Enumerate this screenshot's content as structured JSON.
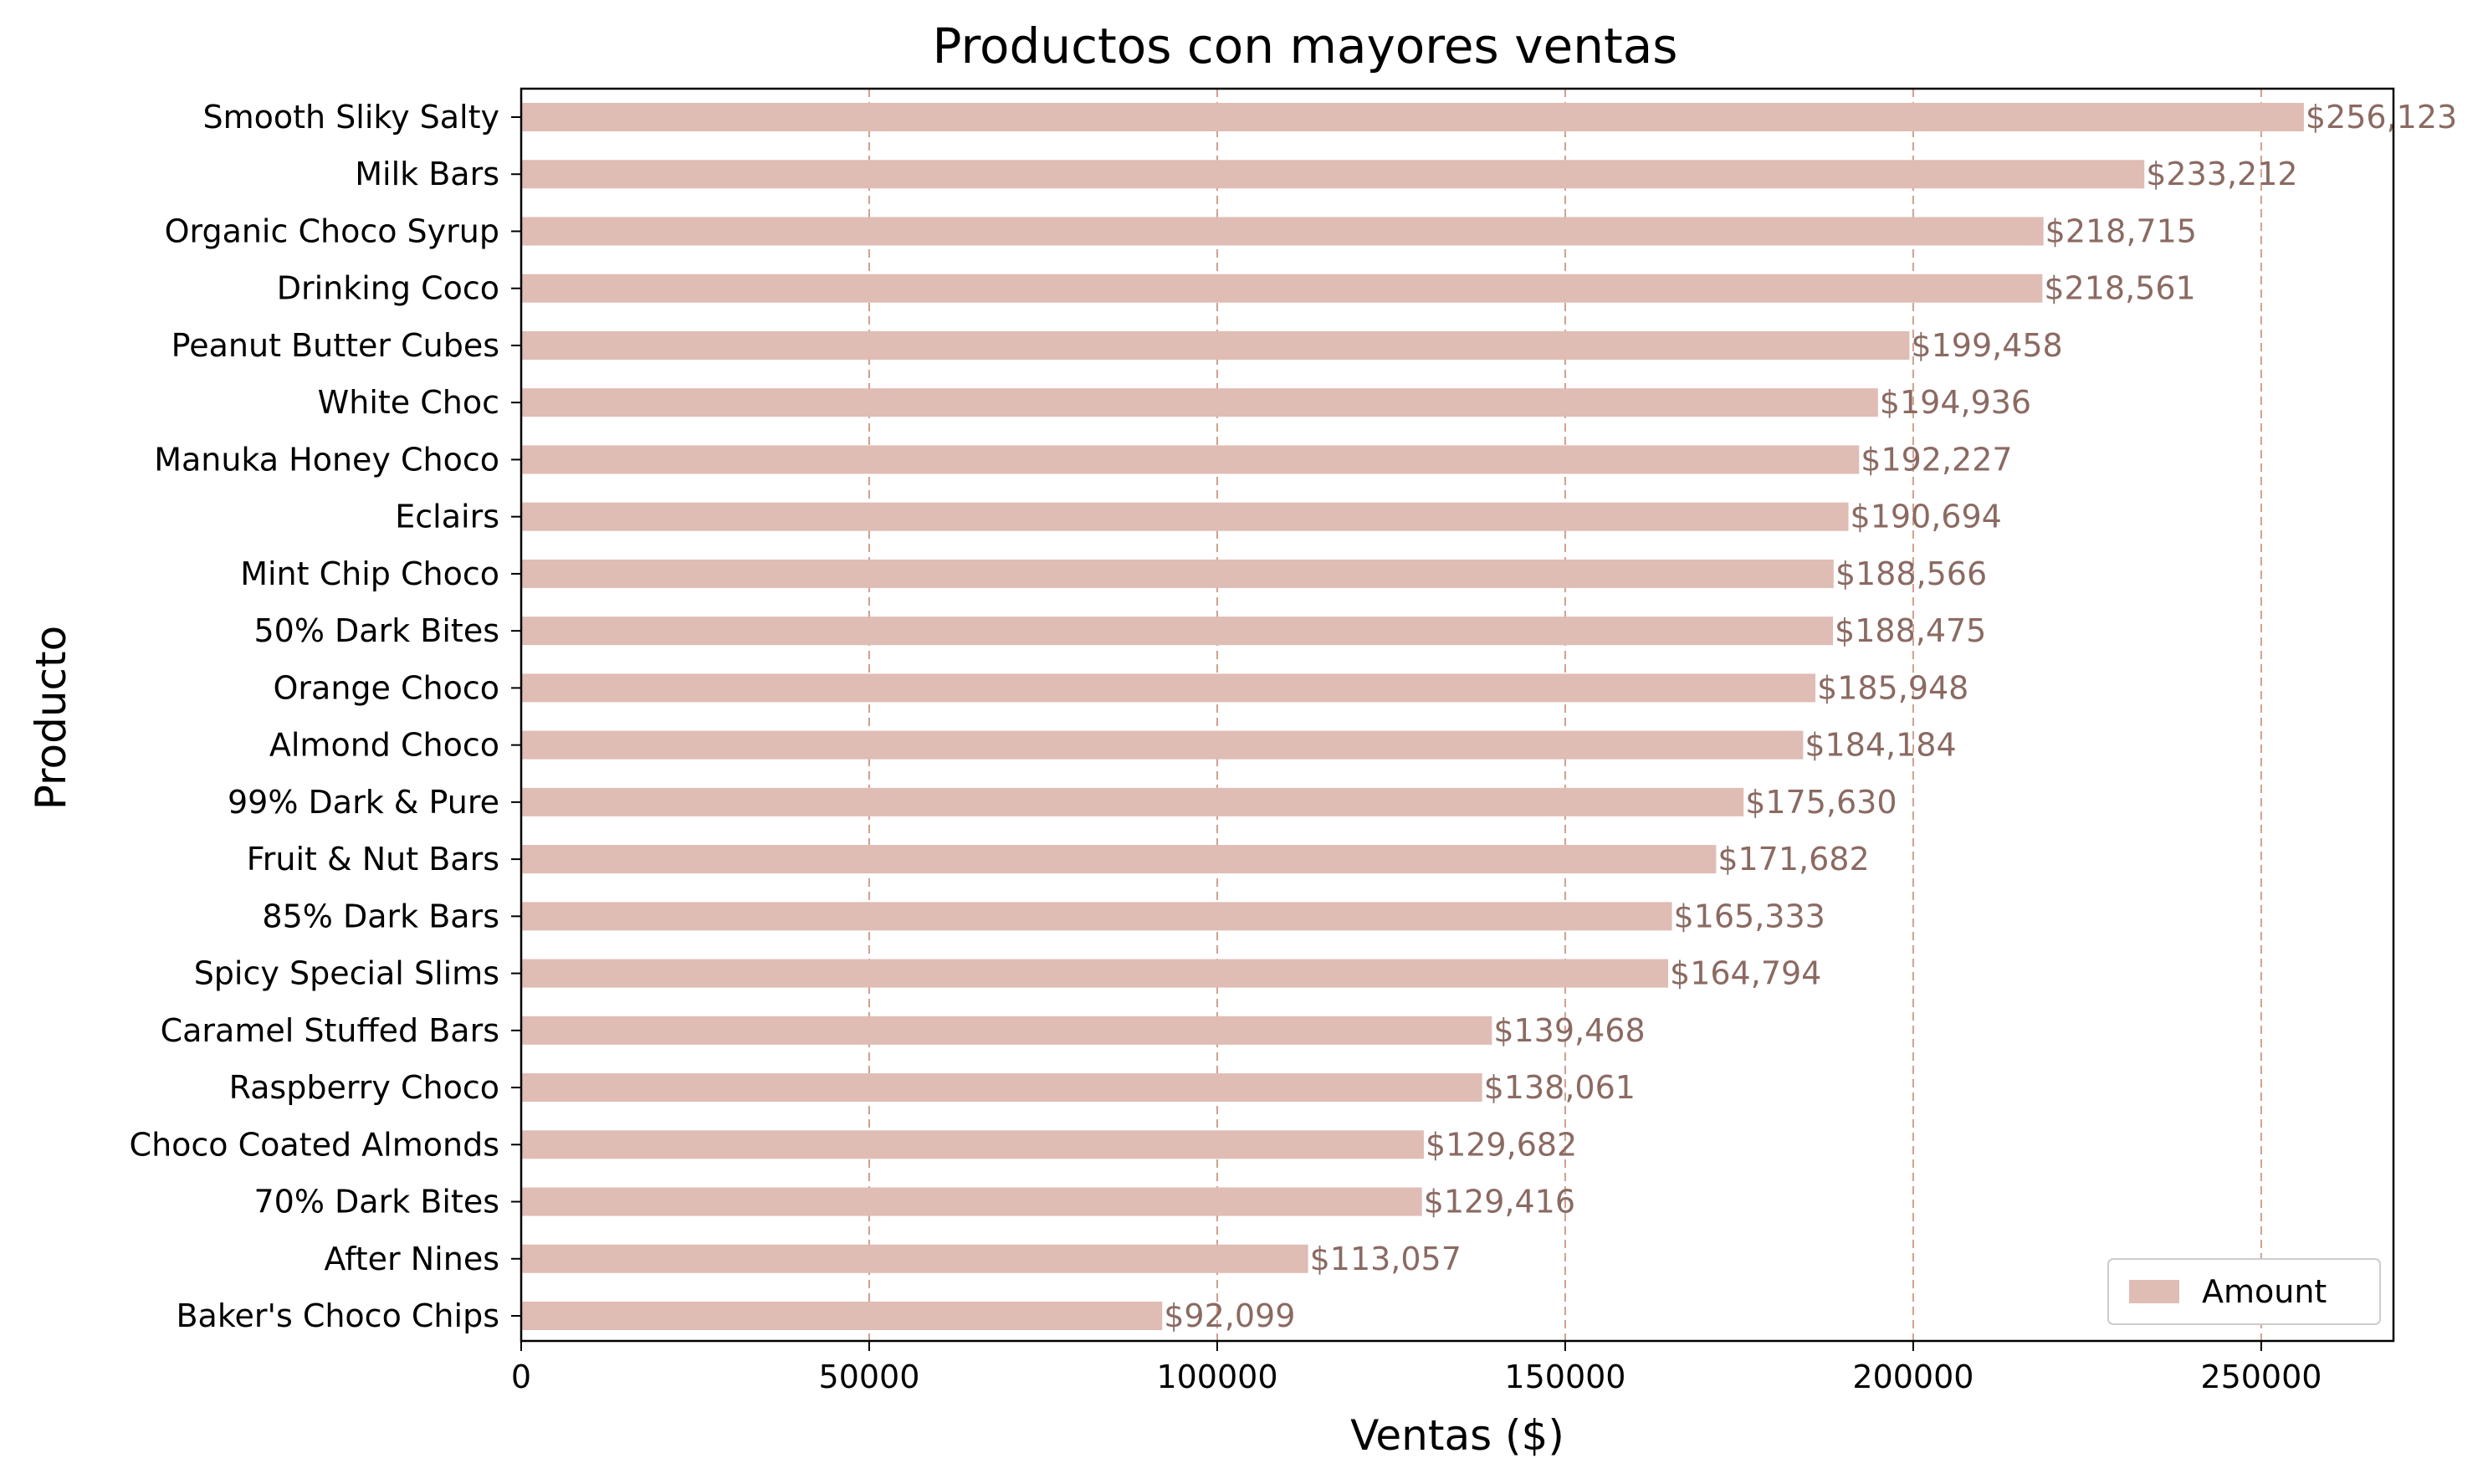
{
  "chart_data": {
    "type": "bar",
    "orientation": "horizontal",
    "title": "Productos con mayores ventas",
    "xlabel": "Ventas ($)",
    "ylabel": "Producto",
    "xlim": [
      0,
      269000
    ],
    "xticks": [
      0,
      50000,
      100000,
      150000,
      200000,
      250000
    ],
    "xtick_labels": [
      "0",
      "50000",
      "100000",
      "150000",
      "200000",
      "250000"
    ],
    "grid": "x-dashed",
    "legend": {
      "placement": "bottom-right",
      "entries": [
        "Amount"
      ]
    },
    "colors": {
      "bar": "#dfbcb4",
      "data_label": "#8b6a62",
      "grid": "#d1a08f"
    },
    "categories": [
      "Smooth Sliky Salty",
      "Milk Bars",
      "Organic Choco Syrup",
      "Drinking Coco",
      "Peanut Butter Cubes",
      "White Choc",
      "Manuka Honey Choco",
      "Eclairs",
      "Mint Chip Choco",
      "50% Dark Bites",
      "Orange Choco",
      "Almond Choco",
      "99% Dark & Pure",
      "Fruit & Nut Bars",
      "85% Dark Bars",
      "Spicy Special Slims",
      "Caramel Stuffed Bars",
      "Raspberry Choco",
      "Choco Coated Almonds",
      "70% Dark Bites",
      "After Nines",
      "Baker's Choco Chips"
    ],
    "series": [
      {
        "name": "Amount",
        "values": [
          256123,
          233212,
          218715,
          218561,
          199458,
          194936,
          192227,
          190694,
          188566,
          188475,
          185948,
          184184,
          175630,
          171682,
          165333,
          164794,
          139468,
          138061,
          129682,
          129416,
          113057,
          92099
        ]
      }
    ],
    "data_labels": [
      "$256,123",
      "$233,212",
      "$218,715",
      "$218,561",
      "$199,458",
      "$194,936",
      "$192,227",
      "$190,694",
      "$188,566",
      "$188,475",
      "$185,948",
      "$184,184",
      "$175,630",
      "$171,682",
      "$165,333",
      "$164,794",
      "$139,468",
      "$138,061",
      "$129,682",
      "$129,416",
      "$113,057",
      "$92,099"
    ]
  }
}
